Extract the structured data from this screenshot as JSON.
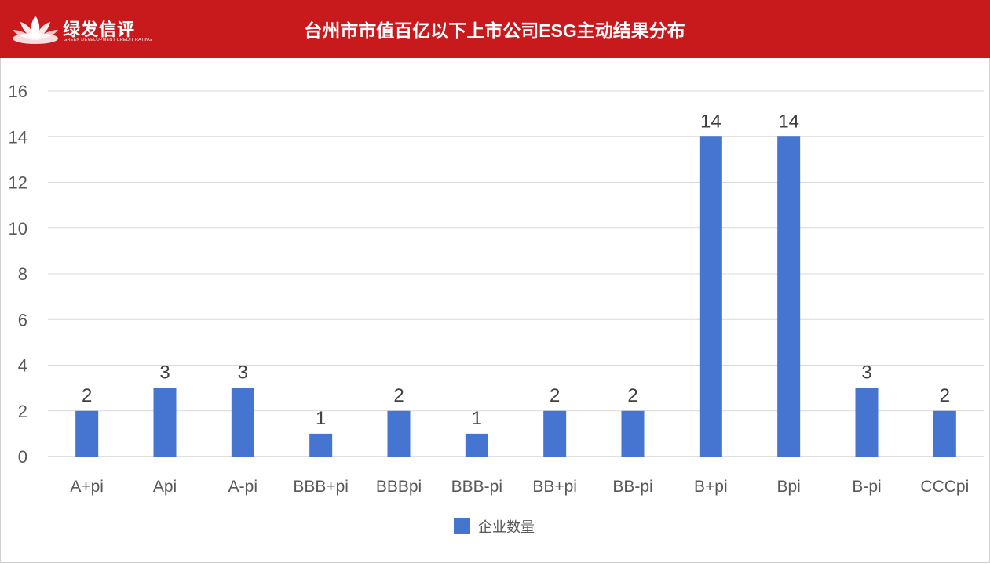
{
  "header": {
    "logo": {
      "name_cn": "绿发信评",
      "name_en": "GREEN DEVELOPMENT CREDIT RATING",
      "icon": "lotus-icon"
    },
    "title": "台州市市值百亿以下上市公司ESG主动结果分布"
  },
  "colors": {
    "header_bg": "#c8191d",
    "bar": "#4674d1",
    "grid": "#d9d9d9"
  },
  "chart_data": {
    "type": "bar",
    "title": "台州市市值百亿以下上市公司ESG主动结果分布",
    "categories": [
      "A+pi",
      "Api",
      "A-pi",
      "BBB+pi",
      "BBBpi",
      "BBB-pi",
      "BB+pi",
      "BB-pi",
      "B+pi",
      "Bpi",
      "B-pi",
      "CCCpi"
    ],
    "series": [
      {
        "name": "企业数量",
        "values": [
          2,
          3,
          3,
          1,
          2,
          1,
          2,
          2,
          14,
          14,
          3,
          2
        ]
      }
    ],
    "yticks": [
      0,
      2,
      4,
      6,
      8,
      10,
      12,
      14,
      16
    ],
    "ylim": [
      0,
      16
    ],
    "xlabel": "",
    "ylabel": "",
    "grid": true,
    "legend_position": "bottom",
    "data_labels": true
  }
}
